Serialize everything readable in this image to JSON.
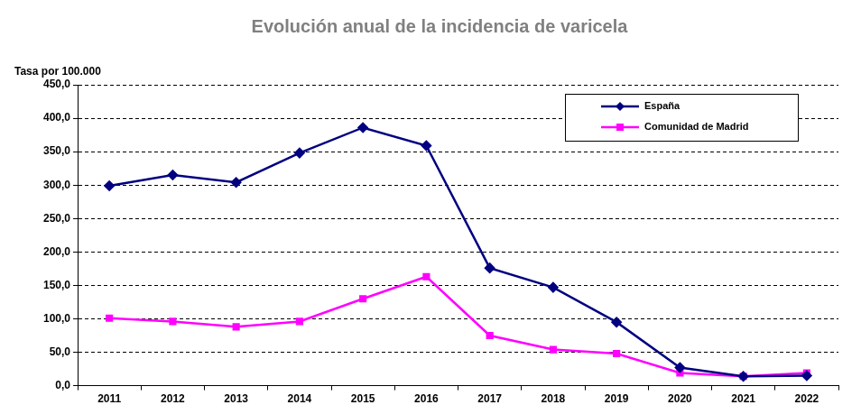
{
  "chart_data": {
    "type": "line",
    "title": "Evolución anual de la incidencia de varicela",
    "y_label": "Tasa por 100.000",
    "categories": [
      "2011",
      "2012",
      "2013",
      "2014",
      "2015",
      "2016",
      "2017",
      "2018",
      "2019",
      "2020",
      "2021",
      "2022"
    ],
    "series": [
      {
        "name": "España",
        "color": "#000080",
        "marker": "diamond",
        "values": [
          299,
          315,
          304,
          348,
          386,
          359,
          176,
          147,
          95,
          27,
          14,
          15
        ]
      },
      {
        "name": "Comunidad de Madrid",
        "color": "#ff00ff",
        "marker": "square",
        "values": [
          101,
          96,
          88,
          96,
          130,
          163,
          75,
          54,
          48,
          19,
          14,
          19
        ]
      }
    ],
    "ylim": [
      0,
      450
    ],
    "yticks": [
      {
        "value": 0,
        "label": "0,0"
      },
      {
        "value": 50,
        "label": "50,0"
      },
      {
        "value": 100,
        "label": "100,0"
      },
      {
        "value": 150,
        "label": "150,0"
      },
      {
        "value": 200,
        "label": "200,0"
      },
      {
        "value": 250,
        "label": "250,0"
      },
      {
        "value": 300,
        "label": "300,0"
      },
      {
        "value": 350,
        "label": "350,0"
      },
      {
        "value": 400,
        "label": "400,0"
      },
      {
        "value": 450,
        "label": "450,0"
      }
    ],
    "grid": true,
    "legend": "upper right"
  }
}
